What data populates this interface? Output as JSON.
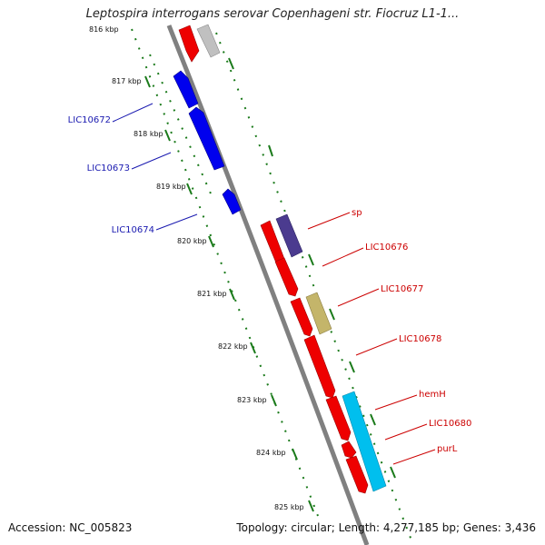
{
  "title": "Leptospira interrogans serovar Copenhageni str. Fiocruz L1-1...",
  "footer": {
    "accession": "Accession: NC_005823",
    "topology": "Topology: circular; Length: 4,277,185 bp; Genes: 3,436"
  },
  "kbp_labels": [
    "816 kbp",
    "817 kbp",
    "818 kbp",
    "819 kbp",
    "820 kbp",
    "821 kbp",
    "822 kbp",
    "823 kbp",
    "824 kbp",
    "825 kbp"
  ],
  "gene_labels": {
    "LIC10672": "LIC10672",
    "LIC10673": "LIC10673",
    "LIC10674": "LIC10674",
    "sp": "sp",
    "LIC10676": "LIC10676",
    "LIC10677": "LIC10677",
    "LIC10678": "LIC10678",
    "hemH": "hemH",
    "LIC10680": "LIC10680",
    "purL": "purL"
  },
  "colors": {
    "reverse_strand_gene": "#0000ee",
    "forward_strand_gene": "#ee0000",
    "label_reverse": "#1a1ab0",
    "label_forward": "#cc0000",
    "backbone": "#808080",
    "tick": "#1a7a1a"
  }
}
